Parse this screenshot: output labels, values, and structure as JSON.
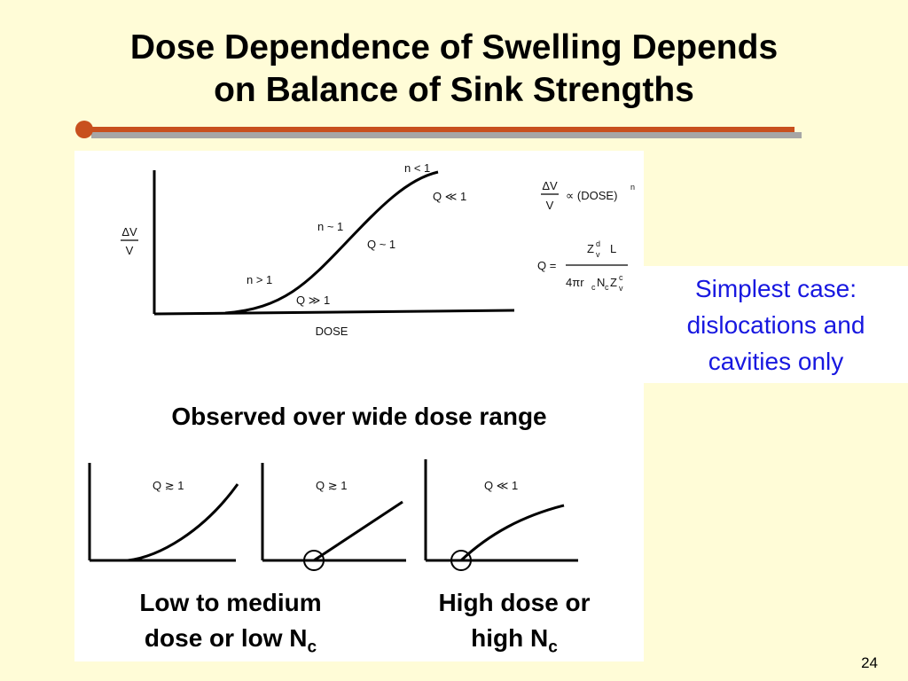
{
  "slide": {
    "title_line1": "Dose Dependence of Swelling Depends",
    "title_line2": "on Balance of Sink Strengths",
    "page_number": "24",
    "accent_color": "#C8501E",
    "note_color": "#1818E0"
  },
  "main_plot": {
    "y_num": "ΔV",
    "y_den": "V",
    "x_label": "DOSE",
    "label_n_lt": "n < 1",
    "label_q_ll": "Q ≪ 1",
    "label_n_approx": "n ~ 1",
    "label_q_approx": "Q ~ 1",
    "label_n_gt": "n > 1",
    "label_q_gg": "Q ≫ 1"
  },
  "equations": {
    "dv": "ΔV",
    "v": "V",
    "propto": "∝ (DOSE)",
    "exp_n": "n",
    "q_eq": "Q =",
    "z": "Z",
    "z_sup": "d",
    "z_sub": "v",
    "l": "L",
    "four_pi_r": "4πr",
    "sub_c1": "c",
    "n_": "N",
    "sub_c2": "c",
    "z2": "Z",
    "z2_sup": "c",
    "z2_sub": "v"
  },
  "note": {
    "line1": "Simplest case:",
    "line2": "dislocations and",
    "line3": "cavities only"
  },
  "observed": "Observed over wide dose range",
  "mini_plots": [
    {
      "label": "Q ≳ 1"
    },
    {
      "label": "Q ≳ 1"
    },
    {
      "label": "Q ≪ 1"
    }
  ],
  "captions": {
    "left_line1": "Low to medium",
    "left_line2": "dose or low N",
    "left_sub": "c",
    "right_line1": "High dose or",
    "right_line2": "high N",
    "right_sub": "c"
  }
}
